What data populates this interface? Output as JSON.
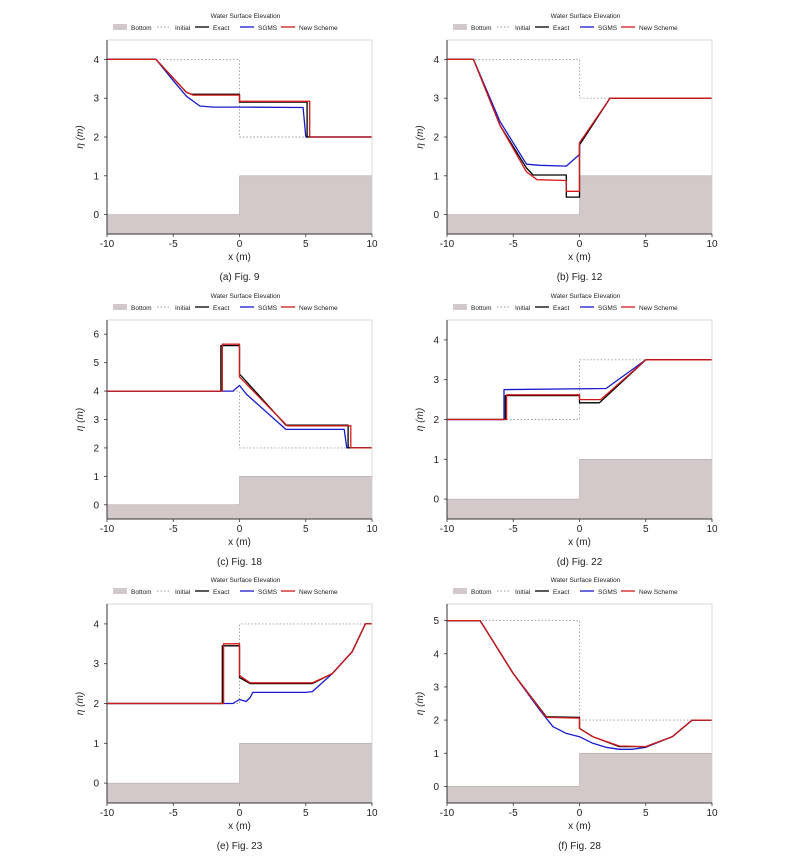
{
  "legend": {
    "title": "Water Surface Elevation",
    "entries": [
      {
        "key": "bottom",
        "label": "Bottom"
      },
      {
        "key": "initial",
        "label": "Initial"
      },
      {
        "key": "exact",
        "label": "Exact"
      },
      {
        "key": "sgms",
        "label": "SGMS"
      },
      {
        "key": "new",
        "label": "New Scheme"
      }
    ]
  },
  "colors": {
    "bottom": "#d4c9ca",
    "bottom_edge": "#a89e9f",
    "initial": "#9b9b9b",
    "exact": "#000000",
    "sgms": "#1a1acc",
    "new": "#d21a1a",
    "axis": "#333333"
  },
  "chart_data": [
    {
      "type": "line",
      "caption": "(a) Fig. 9",
      "xlabel": "x (m)",
      "ylabel": "η (m)",
      "xlim": [
        -10,
        10
      ],
      "ylim": [
        -0.5,
        4.5
      ],
      "xticks": [
        -10,
        -5,
        0,
        5,
        10
      ],
      "yticks": [
        0,
        1,
        2,
        3,
        4
      ],
      "bottom": [
        [
          -10,
          0
        ],
        [
          0,
          0
        ],
        [
          0,
          1
        ],
        [
          10,
          1
        ]
      ],
      "series": [
        {
          "key": "initial",
          "x": [
            -10,
            0,
            0,
            10
          ],
          "y": [
            4,
            4,
            2,
            2
          ]
        },
        {
          "key": "exact",
          "x": [
            -10,
            -6.3,
            -4,
            -3.6,
            0,
            0,
            5.1,
            5.1,
            10
          ],
          "y": [
            4,
            4,
            3.15,
            3.1,
            3.1,
            2.9,
            2.9,
            2,
            2
          ]
        },
        {
          "key": "sgms",
          "x": [
            -10,
            -6.3,
            -5,
            -4,
            -3,
            -2,
            0,
            4.8,
            5.0,
            10
          ],
          "y": [
            4,
            4,
            3.45,
            3.05,
            2.8,
            2.77,
            2.77,
            2.76,
            2,
            2
          ]
        },
        {
          "key": "new",
          "x": [
            -10,
            -6.3,
            -4,
            -3.5,
            0,
            0,
            5.3,
            5.3,
            10
          ],
          "y": [
            4,
            4,
            3.15,
            3.08,
            3.08,
            2.92,
            2.92,
            2,
            2
          ]
        }
      ]
    },
    {
      "type": "line",
      "caption": "(b) Fig. 12",
      "xlabel": "x (m)",
      "ylabel": "η (m)",
      "xlim": [
        -10,
        10
      ],
      "ylim": [
        -0.5,
        4.5
      ],
      "xticks": [
        -10,
        -5,
        0,
        5,
        10
      ],
      "yticks": [
        0,
        1,
        2,
        3,
        4
      ],
      "bottom": [
        [
          -10,
          0
        ],
        [
          0,
          0
        ],
        [
          0,
          1
        ],
        [
          10,
          1
        ]
      ],
      "series": [
        {
          "key": "initial",
          "x": [
            -10,
            0,
            0,
            10
          ],
          "y": [
            4,
            4,
            3,
            3
          ]
        },
        {
          "key": "exact",
          "x": [
            -10,
            -8,
            -6,
            -4,
            -3.5,
            -1,
            -1,
            0,
            0,
            2.3,
            10
          ],
          "y": [
            4,
            4,
            2.3,
            1.2,
            1.02,
            1.02,
            0.45,
            0.45,
            1.8,
            3,
            3
          ]
        },
        {
          "key": "sgms",
          "x": [
            -10,
            -8,
            -6,
            -4,
            -3,
            -1,
            0,
            0,
            2.3,
            10
          ],
          "y": [
            4,
            4,
            2.4,
            1.3,
            1.27,
            1.25,
            1.55,
            1.8,
            3,
            3
          ]
        },
        {
          "key": "new",
          "x": [
            -10,
            -8,
            -6,
            -4,
            -3.2,
            -1,
            -1,
            0,
            0,
            2.3,
            10
          ],
          "y": [
            4,
            4,
            2.3,
            1.1,
            0.9,
            0.88,
            0.6,
            0.6,
            1.85,
            3,
            3
          ]
        }
      ]
    },
    {
      "type": "line",
      "caption": "(c) Fig. 18",
      "xlabel": "x (m)",
      "ylabel": "η (m)",
      "xlim": [
        -10,
        10
      ],
      "ylim": [
        -0.5,
        6.5
      ],
      "xticks": [
        -10,
        -5,
        0,
        5,
        10
      ],
      "yticks": [
        0,
        1,
        2,
        3,
        4,
        5,
        6
      ],
      "bottom": [
        [
          -10,
          0
        ],
        [
          0,
          0
        ],
        [
          0,
          1
        ],
        [
          10,
          1
        ]
      ],
      "series": [
        {
          "key": "initial",
          "x": [
            -10,
            0,
            0,
            10
          ],
          "y": [
            4,
            4,
            2,
            2
          ]
        },
        {
          "key": "exact",
          "x": [
            -10,
            -1.4,
            -1.4,
            0,
            0,
            3.5,
            8.2,
            8.2,
            10
          ],
          "y": [
            4,
            4,
            5.6,
            5.6,
            4.6,
            2.8,
            2.8,
            2,
            2
          ]
        },
        {
          "key": "sgms",
          "x": [
            -10,
            -0.5,
            0,
            0.5,
            3.5,
            7.9,
            8.1,
            10
          ],
          "y": [
            4,
            4,
            4.2,
            3.9,
            2.65,
            2.65,
            2,
            2
          ]
        },
        {
          "key": "new",
          "x": [
            -10,
            -1.3,
            -1.3,
            0,
            0,
            3.6,
            8.4,
            8.4,
            10
          ],
          "y": [
            4,
            4,
            5.65,
            5.65,
            4.5,
            2.78,
            2.78,
            2,
            2
          ]
        }
      ]
    },
    {
      "type": "line",
      "caption": "(d) Fig. 22",
      "xlabel": "x (m)",
      "ylabel": "η (m)",
      "xlim": [
        -10,
        10
      ],
      "ylim": [
        -0.5,
        4.5
      ],
      "xticks": [
        -10,
        -5,
        0,
        5,
        10
      ],
      "yticks": [
        0,
        1,
        2,
        3,
        4
      ],
      "bottom": [
        [
          -10,
          0
        ],
        [
          0,
          0
        ],
        [
          0,
          1
        ],
        [
          10,
          1
        ]
      ],
      "series": [
        {
          "key": "initial",
          "x": [
            -10,
            -5,
            -5,
            0,
            0,
            10
          ],
          "y": [
            2,
            2,
            2,
            2,
            3.5,
            3.5
          ]
        },
        {
          "key": "exact",
          "x": [
            -10,
            -5.6,
            -5.6,
            0,
            0,
            1.5,
            5,
            10
          ],
          "y": [
            2,
            2,
            2.6,
            2.6,
            2.42,
            2.42,
            3.5,
            3.5
          ]
        },
        {
          "key": "sgms",
          "x": [
            -10,
            -5.7,
            -5.7,
            2,
            5,
            10
          ],
          "y": [
            2,
            2,
            2.75,
            2.78,
            3.5,
            3.5
          ]
        },
        {
          "key": "new",
          "x": [
            -10,
            -5.5,
            -5.5,
            0,
            0,
            1.6,
            5,
            10
          ],
          "y": [
            2,
            2,
            2.62,
            2.62,
            2.5,
            2.5,
            3.5,
            3.5
          ]
        }
      ]
    },
    {
      "type": "line",
      "caption": "(e) Fig. 23",
      "xlabel": "x (m)",
      "ylabel": "η (m)",
      "xlim": [
        -10,
        10
      ],
      "ylim": [
        -0.5,
        4.5
      ],
      "xticks": [
        -10,
        -5,
        0,
        5,
        10
      ],
      "yticks": [
        0,
        1,
        2,
        3,
        4
      ],
      "bottom": [
        [
          -10,
          0
        ],
        [
          0,
          0
        ],
        [
          0,
          1
        ],
        [
          10,
          1
        ]
      ],
      "series": [
        {
          "key": "initial",
          "x": [
            -10,
            0,
            0,
            10
          ],
          "y": [
            2,
            2,
            4,
            4
          ]
        },
        {
          "key": "exact",
          "x": [
            -10,
            -1.3,
            -1.3,
            0,
            0,
            0.8,
            5.5,
            7,
            8.5,
            9.5,
            10
          ],
          "y": [
            2,
            2,
            3.45,
            3.45,
            2.65,
            2.5,
            2.5,
            2.75,
            3.3,
            4,
            4
          ]
        },
        {
          "key": "sgms",
          "x": [
            -10,
            -0.5,
            0,
            0.5,
            0.8,
            1,
            5,
            5.5,
            7,
            8.5,
            9.5,
            10
          ],
          "y": [
            2,
            2,
            2.1,
            2.05,
            2.15,
            2.28,
            2.28,
            2.3,
            2.75,
            3.3,
            4,
            4
          ]
        },
        {
          "key": "new",
          "x": [
            -10,
            -1.2,
            -1.2,
            0,
            0,
            0.8,
            5.5,
            7,
            8.5,
            9.5,
            10
          ],
          "y": [
            2,
            2,
            3.5,
            3.5,
            2.7,
            2.52,
            2.52,
            2.75,
            3.3,
            4,
            4
          ]
        }
      ]
    },
    {
      "type": "line",
      "caption": "(f) Fig. 28",
      "xlabel": "x (m)",
      "ylabel": "η (m)",
      "xlim": [
        -10,
        10
      ],
      "ylim": [
        -0.5,
        5.5
      ],
      "xticks": [
        -10,
        -5,
        0,
        5,
        10
      ],
      "yticks": [
        0,
        1,
        2,
        3,
        4,
        5
      ],
      "bottom": [
        [
          -10,
          0
        ],
        [
          0,
          0
        ],
        [
          0,
          1
        ],
        [
          10,
          1
        ]
      ],
      "series": [
        {
          "key": "initial",
          "x": [
            -10,
            0,
            0,
            10
          ],
          "y": [
            5,
            5,
            2,
            2
          ]
        },
        {
          "key": "exact",
          "x": [
            -10,
            -7.5,
            -5,
            -2.5,
            0,
            0,
            1,
            3,
            5,
            7,
            8.5,
            10
          ],
          "y": [
            5,
            5,
            3.4,
            2.1,
            2.08,
            1.75,
            1.5,
            1.2,
            1.2,
            1.5,
            2,
            2
          ]
        },
        {
          "key": "sgms",
          "x": [
            -10,
            -7.5,
            -5,
            -3,
            -2,
            -1,
            0,
            1,
            2,
            3,
            4,
            5,
            7,
            8.5,
            10
          ],
          "y": [
            5,
            5,
            3.4,
            2.3,
            1.8,
            1.6,
            1.5,
            1.3,
            1.18,
            1.12,
            1.12,
            1.18,
            1.5,
            2,
            2
          ]
        },
        {
          "key": "new",
          "x": [
            -10,
            -7.5,
            -5,
            -2.5,
            0,
            0,
            1,
            3,
            5,
            7,
            8.5,
            10
          ],
          "y": [
            5,
            5,
            3.4,
            2.08,
            2.06,
            1.75,
            1.5,
            1.22,
            1.2,
            1.5,
            2,
            2
          ]
        }
      ]
    }
  ]
}
